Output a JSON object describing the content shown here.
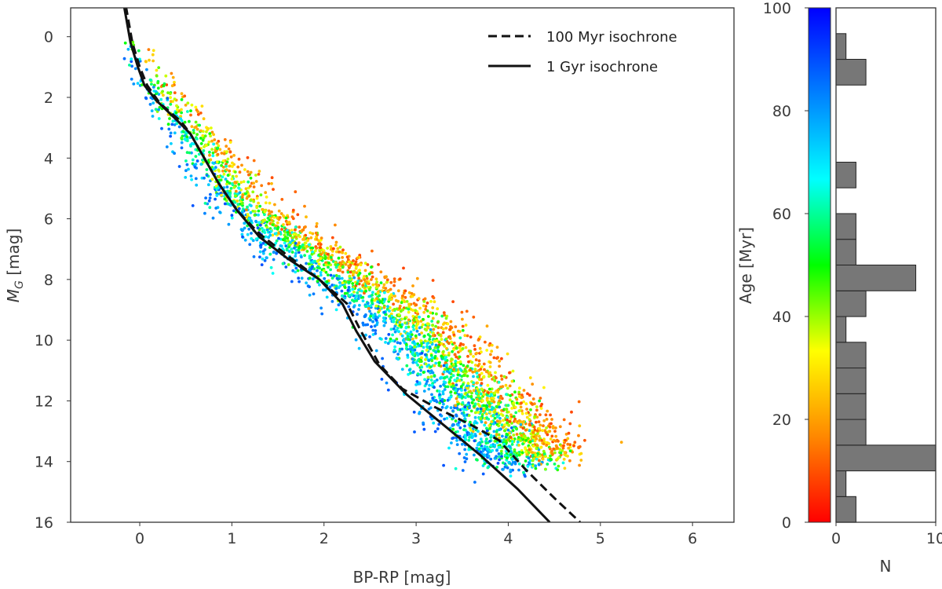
{
  "chart_data": [
    {
      "type": "scatter",
      "id": "cmd",
      "xlabel": "BP-RP [mag]",
      "ylabel_main": "M",
      "ylabel_sub": "G",
      "ylabel_suffix": " [mag]",
      "xlim": [
        -0.75,
        6.45
      ],
      "ylim": [
        16,
        -0.95
      ],
      "y_inverted": true,
      "grid": false,
      "x_ticks": [
        0,
        1,
        2,
        3,
        4,
        5,
        6
      ],
      "y_ticks": [
        0,
        2,
        4,
        6,
        8,
        10,
        12,
        14,
        16
      ],
      "legend_position": "top-right",
      "legend": [
        {
          "label": "100 Myr isochrone",
          "style": "dashed"
        },
        {
          "label": "1 Gyr isochrone",
          "style": "solid"
        }
      ],
      "isochrones": [
        {
          "name": "100 Myr isochrone",
          "style": "dashed",
          "points": [
            [
              -0.15,
              -1.0
            ],
            [
              -0.08,
              0.2
            ],
            [
              0.0,
              1.0
            ],
            [
              0.08,
              1.6
            ],
            [
              0.22,
              2.2
            ],
            [
              0.45,
              2.8
            ],
            [
              0.55,
              3.2
            ],
            [
              0.7,
              4.0
            ],
            [
              0.85,
              4.8
            ],
            [
              1.05,
              5.7
            ],
            [
              1.3,
              6.5
            ],
            [
              1.6,
              7.2
            ],
            [
              1.95,
              8.0
            ],
            [
              2.25,
              8.8
            ],
            [
              2.4,
              9.7
            ],
            [
              2.6,
              10.8
            ],
            [
              2.85,
              11.6
            ],
            [
              3.2,
              12.2
            ],
            [
              3.6,
              12.8
            ],
            [
              3.9,
              13.3
            ],
            [
              4.2,
              14.3
            ],
            [
              4.5,
              15.2
            ],
            [
              4.78,
              16.0
            ]
          ]
        },
        {
          "name": "1 Gyr isochrone",
          "style": "solid",
          "points": [
            [
              -0.17,
              -1.0
            ],
            [
              -0.1,
              0.2
            ],
            [
              -0.02,
              1.0
            ],
            [
              0.05,
              1.6
            ],
            [
              0.18,
              2.1
            ],
            [
              0.42,
              2.8
            ],
            [
              0.55,
              3.2
            ],
            [
              0.7,
              4.0
            ],
            [
              0.85,
              4.8
            ],
            [
              1.05,
              5.7
            ],
            [
              1.3,
              6.6
            ],
            [
              1.6,
              7.3
            ],
            [
              1.95,
              8.0
            ],
            [
              2.2,
              8.8
            ],
            [
              2.35,
              9.7
            ],
            [
              2.55,
              10.7
            ],
            [
              2.9,
              11.8
            ],
            [
              3.3,
              12.8
            ],
            [
              3.7,
              13.8
            ],
            [
              4.1,
              14.9
            ],
            [
              4.45,
              16.0
            ]
          ]
        }
      ],
      "scatter_ridge": [
        [
          -0.12,
          -0.3
        ],
        [
          0.1,
          1.2
        ],
        [
          0.35,
          2.3
        ],
        [
          0.7,
          3.6
        ],
        [
          1.0,
          5.0
        ],
        [
          1.4,
          6.2
        ],
        [
          1.9,
          7.3
        ],
        [
          2.4,
          8.3
        ],
        [
          2.9,
          9.3
        ],
        [
          3.3,
          10.7
        ],
        [
          3.7,
          12.0
        ],
        [
          4.0,
          13.2
        ],
        [
          4.3,
          14.0
        ]
      ],
      "n_points": 3200,
      "color_by": "Age [Myr]"
    },
    {
      "type": "colorbar",
      "id": "age-colorbar",
      "label": "Age [Myr]",
      "range": [
        0,
        100
      ],
      "ticks": [
        0,
        20,
        40,
        60,
        80,
        100
      ],
      "colormap": "rainbow (red at 0 to blue at 100)",
      "colors": [
        "#ff0000",
        "#ff8800",
        "#ffff00",
        "#00ff00",
        "#00ffff",
        "#0080ff",
        "#0000ff"
      ]
    },
    {
      "type": "bar",
      "orientation": "horizontal",
      "id": "age-histogram",
      "xlabel": "N",
      "xlim": [
        0,
        10
      ],
      "x_ticks": [
        0,
        10
      ],
      "ylim": [
        0,
        100
      ],
      "bin_width": 5,
      "bins": [
        {
          "age_low": 0,
          "age_high": 5,
          "count": 2
        },
        {
          "age_low": 5,
          "age_high": 10,
          "count": 1
        },
        {
          "age_low": 10,
          "age_high": 15,
          "count": 10
        },
        {
          "age_low": 15,
          "age_high": 20,
          "count": 3
        },
        {
          "age_low": 20,
          "age_high": 25,
          "count": 3
        },
        {
          "age_low": 25,
          "age_high": 30,
          "count": 3
        },
        {
          "age_low": 30,
          "age_high": 35,
          "count": 3
        },
        {
          "age_low": 35,
          "age_high": 40,
          "count": 1
        },
        {
          "age_low": 40,
          "age_high": 45,
          "count": 3
        },
        {
          "age_low": 45,
          "age_high": 50,
          "count": 8
        },
        {
          "age_low": 50,
          "age_high": 55,
          "count": 2
        },
        {
          "age_low": 55,
          "age_high": 60,
          "count": 2
        },
        {
          "age_low": 60,
          "age_high": 65,
          "count": 0
        },
        {
          "age_low": 65,
          "age_high": 70,
          "count": 2
        },
        {
          "age_low": 70,
          "age_high": 75,
          "count": 0
        },
        {
          "age_low": 75,
          "age_high": 80,
          "count": 0
        },
        {
          "age_low": 80,
          "age_high": 85,
          "count": 0
        },
        {
          "age_low": 85,
          "age_high": 90,
          "count": 3
        },
        {
          "age_low": 90,
          "age_high": 95,
          "count": 1
        },
        {
          "age_low": 95,
          "age_high": 100,
          "count": 0
        }
      ],
      "bar_color": "#777777"
    }
  ]
}
